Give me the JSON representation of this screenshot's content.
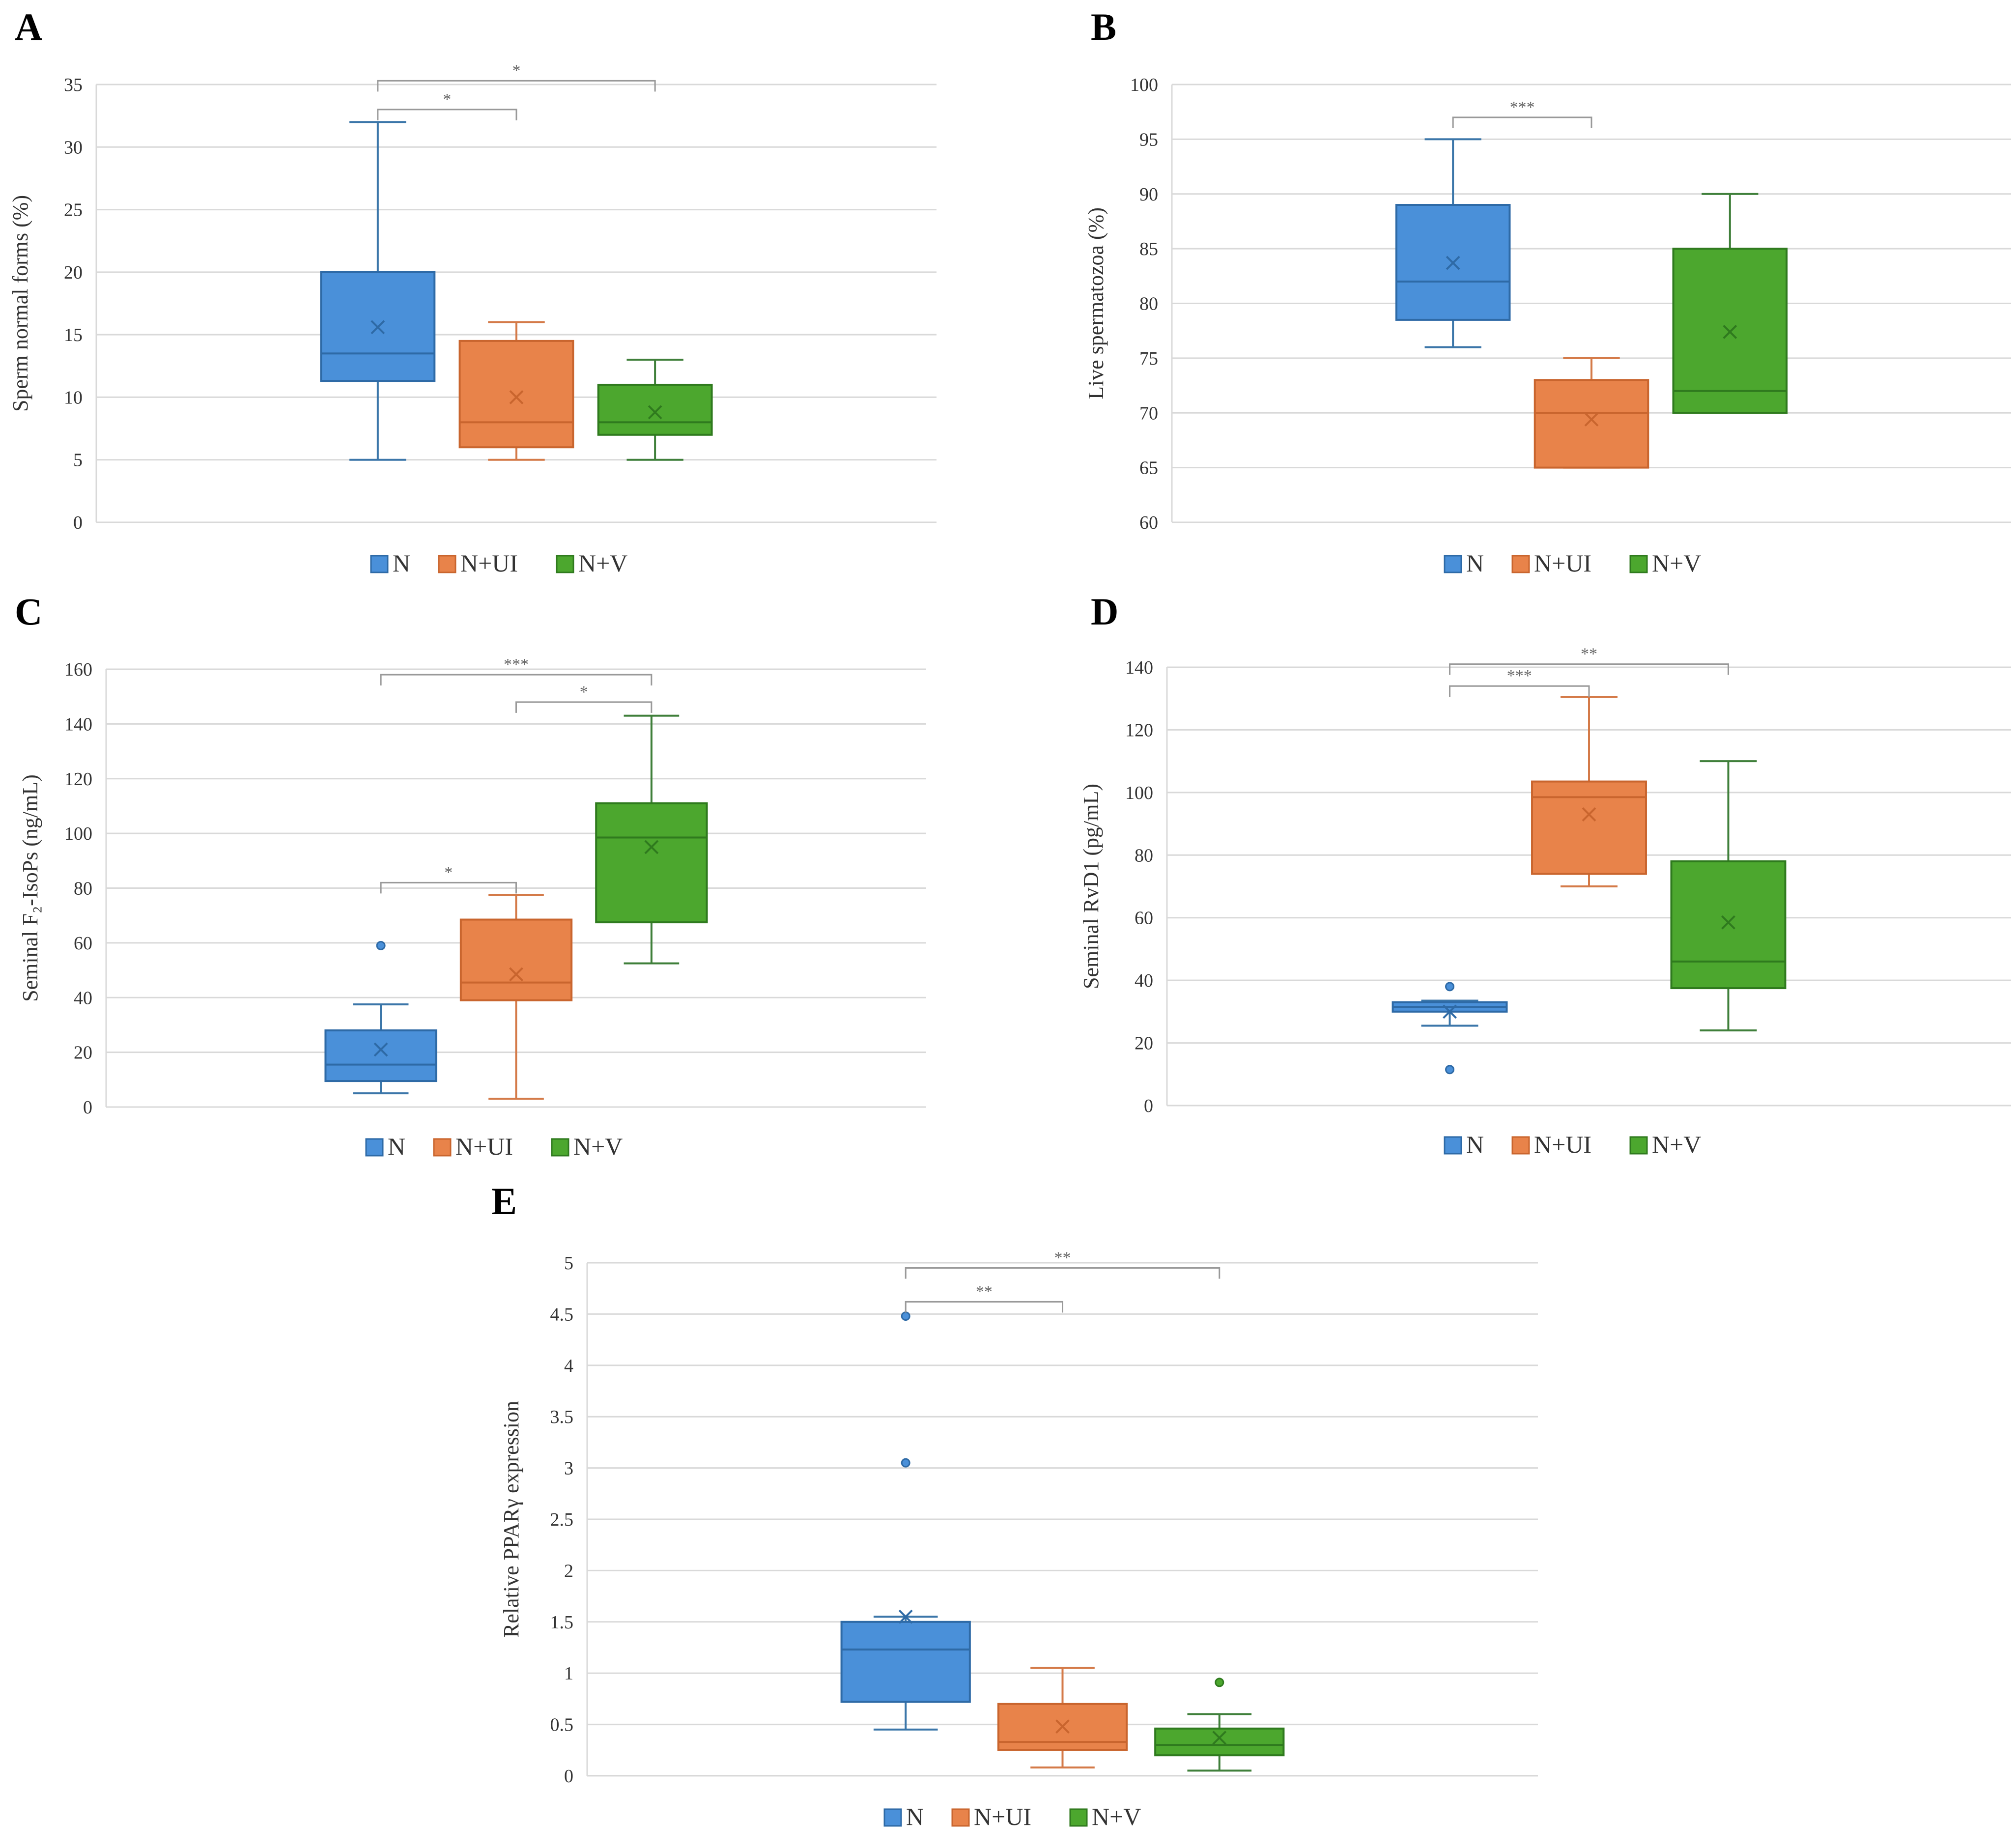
{
  "legend": {
    "items": [
      "N",
      "N+UI",
      "N+V"
    ]
  },
  "colors": {
    "N": {
      "fill": "#4a90d9",
      "stroke": "#2e6aa6",
      "whisker": "#3b76a9"
    },
    "N+UI": {
      "fill": "#e8834a",
      "stroke": "#c9652e",
      "whisker": "#d47a48"
    },
    "N+V": {
      "fill": "#4ca72e",
      "stroke": "#2f7a1e",
      "whisker": "#3f7f3a"
    }
  },
  "chart_data": [
    {
      "panel": "A",
      "type": "box",
      "ylabel": "Sperm normal forms (%)",
      "ylim": [
        0,
        35
      ],
      "yticks": [
        "0",
        "5",
        "10",
        "15",
        "20",
        "25",
        "30",
        "35"
      ],
      "categories": [
        "N",
        "N+UI",
        "N+V"
      ],
      "boxes": [
        {
          "name": "N",
          "min": 5,
          "q1": 11.3,
          "median": 13.5,
          "q3": 20,
          "max": 32,
          "mean": 15.6,
          "outliers": []
        },
        {
          "name": "N+UI",
          "min": 5,
          "q1": 6,
          "median": 8,
          "q3": 14.5,
          "max": 16,
          "mean": 10,
          "outliers": []
        },
        {
          "name": "N+V",
          "min": 5,
          "q1": 7,
          "median": 8,
          "q3": 11,
          "max": 13,
          "mean": 8.8,
          "outliers": []
        }
      ],
      "significance": [
        {
          "from": 0,
          "to": 1,
          "label": "*",
          "y": 33
        },
        {
          "from": 0,
          "to": 2,
          "label": "*",
          "y": 35.3
        }
      ]
    },
    {
      "panel": "B",
      "type": "box",
      "ylabel": "Live spermatozoa (%)",
      "ylim": [
        60,
        100
      ],
      "yticks": [
        "60",
        "65",
        "70",
        "75",
        "80",
        "85",
        "90",
        "95",
        "100"
      ],
      "categories": [
        "N",
        "N+UI",
        "N+V"
      ],
      "boxes": [
        {
          "name": "N",
          "min": 76,
          "q1": 78.5,
          "median": 82,
          "q3": 89,
          "max": 95,
          "mean": 83.7,
          "outliers": []
        },
        {
          "name": "N+UI",
          "min": 65,
          "q1": 65,
          "median": 70,
          "q3": 73,
          "max": 75,
          "mean": 69.4,
          "outliers": []
        },
        {
          "name": "N+V",
          "min": 70,
          "q1": 70,
          "median": 72,
          "q3": 85,
          "max": 90,
          "mean": 77.4,
          "outliers": []
        }
      ],
      "significance": [
        {
          "from": 0,
          "to": 1,
          "label": "***",
          "y": 97
        }
      ]
    },
    {
      "panel": "C",
      "type": "box",
      "ylabel": "Seminal F₂-IsoPs (ng/mL)",
      "ylim": [
        0,
        160
      ],
      "yticks": [
        "0",
        "20",
        "40",
        "60",
        "80",
        "100",
        "120",
        "140",
        "160"
      ],
      "categories": [
        "N",
        "N+UI",
        "N+V"
      ],
      "boxes": [
        {
          "name": "N",
          "min": 5,
          "q1": 9.5,
          "median": 15.5,
          "q3": 28,
          "max": 37.5,
          "mean": 21,
          "outliers": [
            59
          ]
        },
        {
          "name": "N+UI",
          "min": 3,
          "q1": 39,
          "median": 45.5,
          "q3": 68.5,
          "max": 77.5,
          "mean": 48.5,
          "outliers": []
        },
        {
          "name": "N+V",
          "min": 52.5,
          "q1": 67.5,
          "median": 98.5,
          "q3": 111,
          "max": 143,
          "mean": 95,
          "outliers": []
        }
      ],
      "significance": [
        {
          "from": 0,
          "to": 1,
          "label": "*",
          "y": 82
        },
        {
          "from": 1,
          "to": 2,
          "label": "*",
          "y": 148
        },
        {
          "from": 0,
          "to": 2,
          "label": "***",
          "y": 158
        }
      ]
    },
    {
      "panel": "D",
      "type": "box",
      "ylabel": "Seminal RvD1 (pg/mL)",
      "ylim": [
        0,
        140
      ],
      "yticks": [
        "0",
        "20",
        "40",
        "60",
        "80",
        "100",
        "120",
        "140"
      ],
      "categories": [
        "N",
        "N+UI",
        "N+V"
      ],
      "boxes": [
        {
          "name": "N",
          "min": 25.5,
          "q1": 30,
          "median": 31.5,
          "q3": 33,
          "max": 33.5,
          "mean": 30,
          "outliers": [
            38,
            11.5
          ]
        },
        {
          "name": "N+UI",
          "min": 70,
          "q1": 74,
          "median": 98.5,
          "q3": 103.5,
          "max": 130.5,
          "mean": 93,
          "outliers": []
        },
        {
          "name": "N+V",
          "min": 24,
          "q1": 37.5,
          "median": 46,
          "q3": 78,
          "max": 110,
          "mean": 58.5,
          "outliers": []
        }
      ],
      "significance": [
        {
          "from": 0,
          "to": 1,
          "label": "***",
          "y": 134
        },
        {
          "from": 0,
          "to": 2,
          "label": "**",
          "y": 141
        }
      ]
    },
    {
      "panel": "E",
      "type": "box",
      "ylabel": "Relative PPARγ expression",
      "ylim": [
        0,
        5
      ],
      "yticks": [
        "0",
        "0.5",
        "1",
        "1.5",
        "2",
        "2.5",
        "3",
        "3.5",
        "4",
        "4.5",
        "5"
      ],
      "categories": [
        "N",
        "N+UI",
        "N+V"
      ],
      "boxes": [
        {
          "name": "N",
          "min": 0.45,
          "q1": 0.72,
          "median": 1.23,
          "q3": 1.5,
          "max": 1.55,
          "mean": 1.55,
          "outliers": [
            4.48,
            3.05
          ]
        },
        {
          "name": "N+UI",
          "min": 0.08,
          "q1": 0.25,
          "median": 0.33,
          "q3": 0.7,
          "max": 1.05,
          "mean": 0.48,
          "outliers": []
        },
        {
          "name": "N+V",
          "min": 0.05,
          "q1": 0.2,
          "median": 0.3,
          "q3": 0.46,
          "max": 0.6,
          "mean": 0.37,
          "outliers": [
            0.91
          ]
        }
      ],
      "significance": [
        {
          "from": 0,
          "to": 1,
          "label": "**",
          "y": 4.62
        },
        {
          "from": 0,
          "to": 2,
          "label": "**",
          "y": 4.95
        }
      ]
    }
  ]
}
